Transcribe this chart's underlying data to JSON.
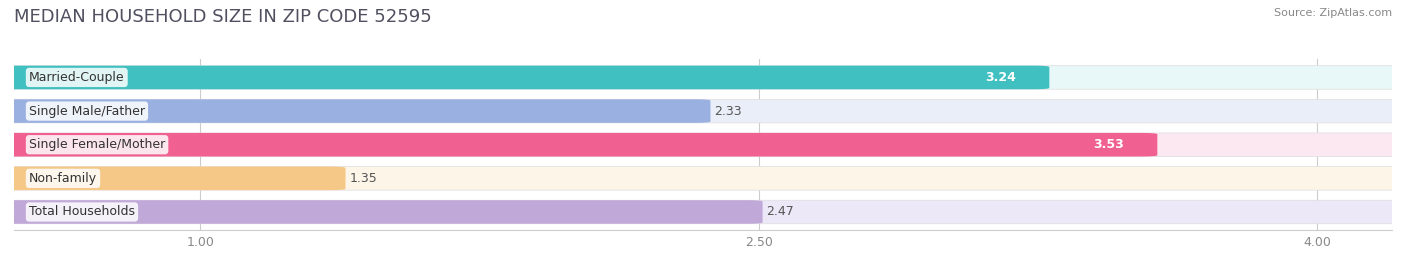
{
  "title": "MEDIAN HOUSEHOLD SIZE IN ZIP CODE 52595",
  "source": "Source: ZipAtlas.com",
  "categories": [
    "Married-Couple",
    "Single Male/Father",
    "Single Female/Mother",
    "Non-family",
    "Total Households"
  ],
  "values": [
    3.24,
    2.33,
    3.53,
    1.35,
    2.47
  ],
  "bar_colors": [
    "#40c0c0",
    "#9ab0e0",
    "#f06090",
    "#f5c888",
    "#c0a8d8"
  ],
  "bar_bg_colors": [
    "#e8f8f8",
    "#eaeef8",
    "#fce8f0",
    "#fdf5e8",
    "#ede8f8"
  ],
  "xlim_data": [
    0.5,
    4.2
  ],
  "xmin": 0.5,
  "xmax": 4.2,
  "xticks": [
    1.0,
    2.5,
    4.0
  ],
  "background_color": "#ffffff",
  "title_fontsize": 13,
  "label_fontsize": 9,
  "value_fontsize": 9
}
